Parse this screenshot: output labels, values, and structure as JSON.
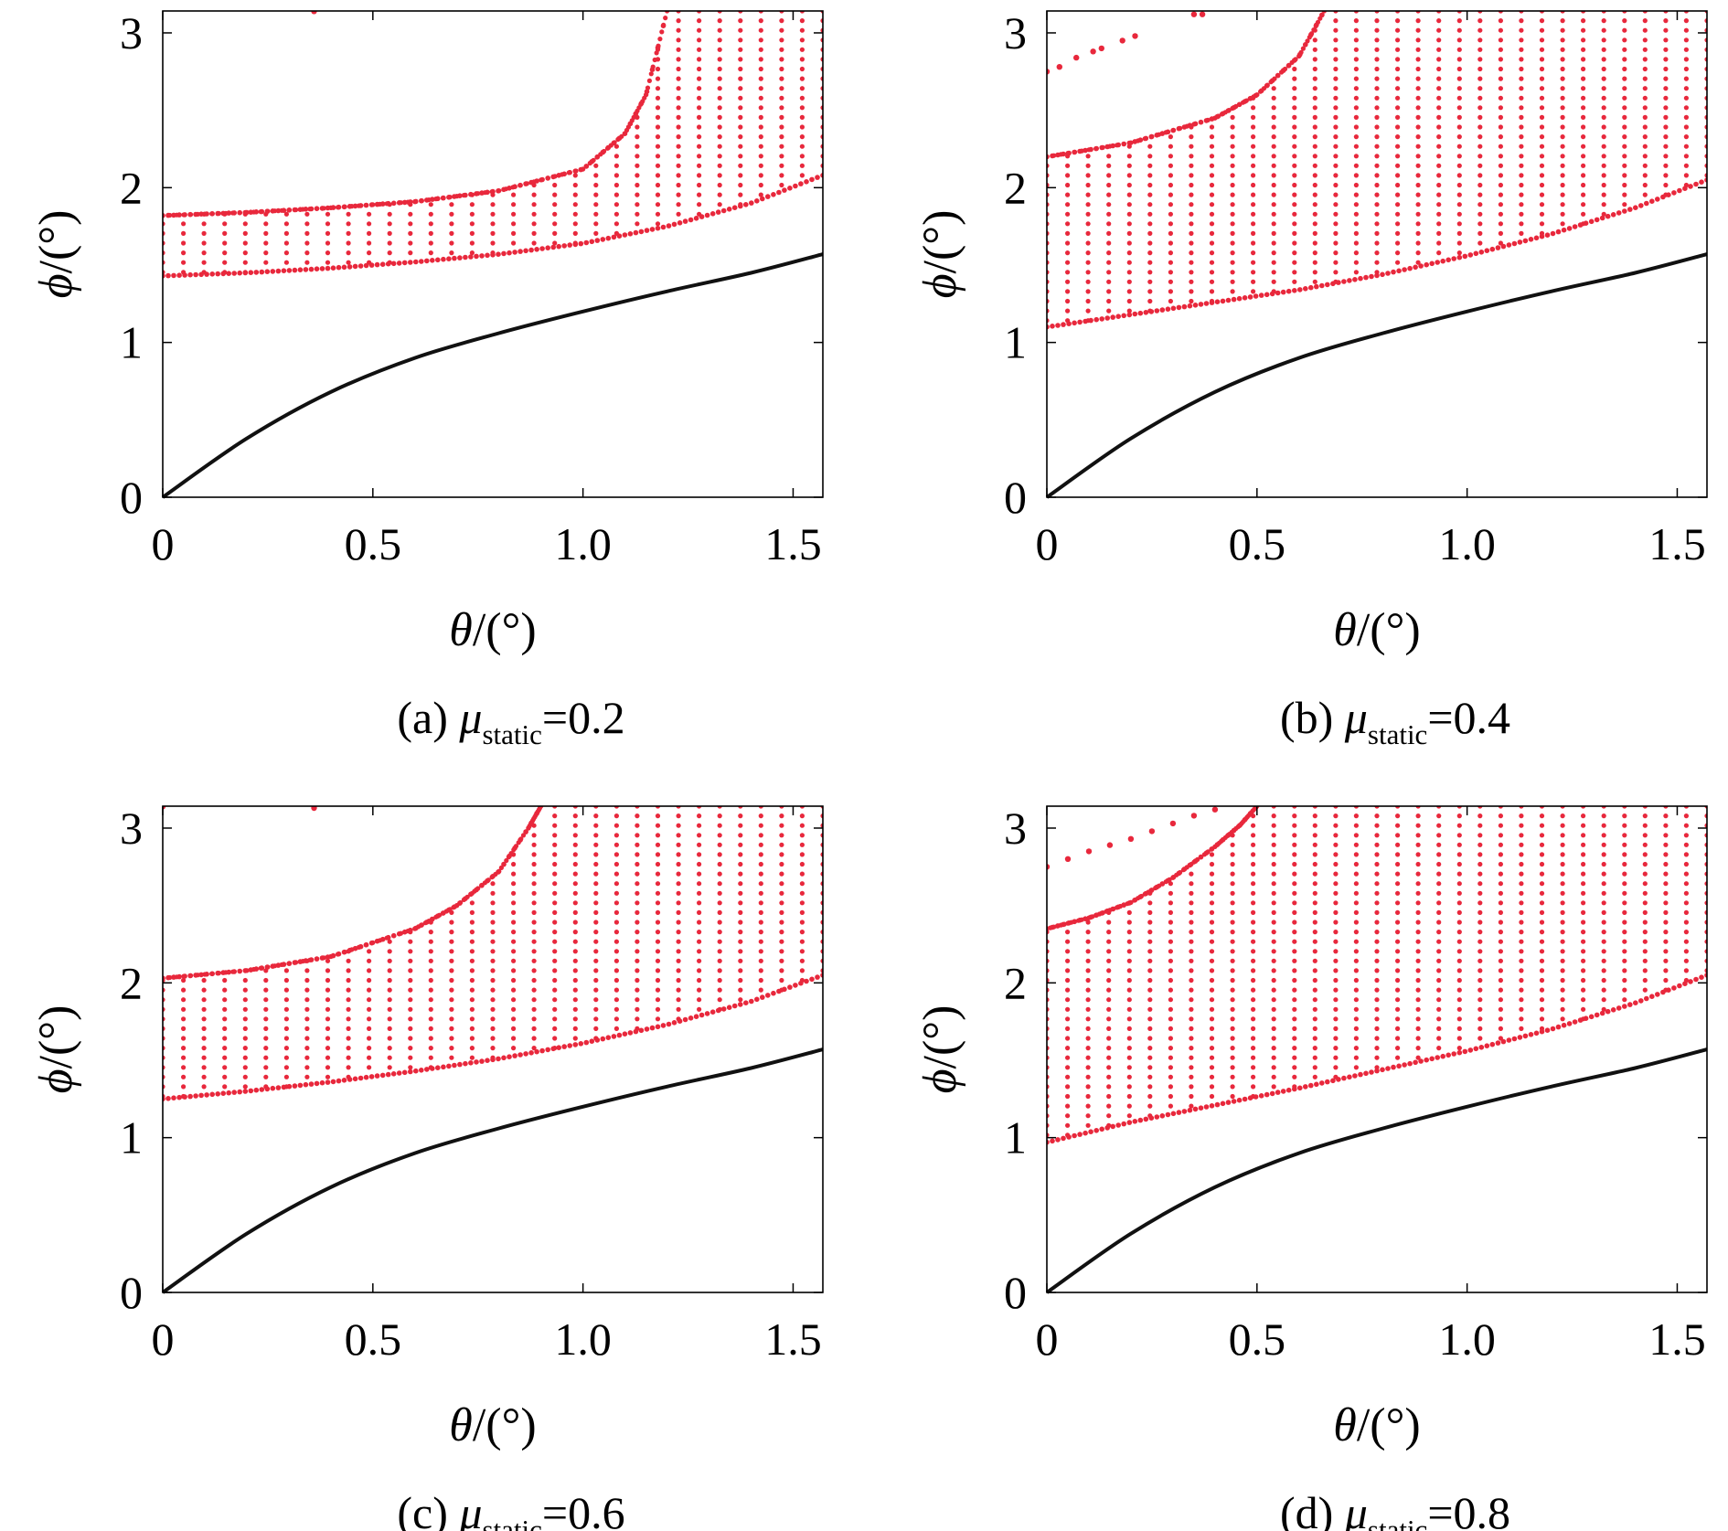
{
  "colors": {
    "region": "#e8283c",
    "curve": "#111111",
    "axis": "#000000"
  },
  "chart_data": [
    {
      "type": "scatter",
      "panel": "a",
      "caption_prefix": "(a) ",
      "mu_symbol": "μ",
      "mu_subscript": "static",
      "mu_value": "=0.2",
      "xlabel_symbol": "θ",
      "xlabel_unit": "/(°)",
      "ylabel_symbol": "ϕ",
      "ylabel_unit": "/(°)",
      "xlim": [
        0,
        1.5708
      ],
      "ylim": [
        0,
        3.1416
      ],
      "xticks": [
        0,
        0.5,
        1.0,
        1.5
      ],
      "xtick_labels": [
        "0",
        "0.5",
        "1.0",
        "1.5"
      ],
      "yticks": [
        0,
        1,
        2,
        3
      ],
      "ytick_labels": [
        "0",
        "1",
        "2",
        "3"
      ],
      "black_curve": {
        "name": "boundary curve",
        "x": [
          0,
          0.2,
          0.4,
          0.6,
          0.8,
          1.0,
          1.2,
          1.4,
          1.5708
        ],
        "y": [
          0,
          0.38,
          0.68,
          0.9,
          1.06,
          1.2,
          1.33,
          1.45,
          1.57
        ]
      },
      "region_lower": {
        "x": [
          0,
          0.2,
          0.4,
          0.6,
          0.8,
          1.0,
          1.2,
          1.4,
          1.5708
        ],
        "y": [
          1.43,
          1.45,
          1.48,
          1.52,
          1.57,
          1.64,
          1.75,
          1.9,
          2.08
        ]
      },
      "region_upper": {
        "x": [
          0,
          0.2,
          0.4,
          0.6,
          0.8,
          1.0,
          1.1,
          1.15,
          1.2
        ],
        "y": [
          1.82,
          1.84,
          1.87,
          1.91,
          1.98,
          2.12,
          2.35,
          2.6,
          3.1416
        ]
      },
      "isolated_points": [
        {
          "x": 0.36,
          "y": 3.14
        }
      ]
    },
    {
      "type": "scatter",
      "panel": "b",
      "caption_prefix": "(b) ",
      "mu_symbol": "μ",
      "mu_subscript": "static",
      "mu_value": "=0.4",
      "xlabel_symbol": "θ",
      "xlabel_unit": "/(°)",
      "ylabel_symbol": "ϕ",
      "ylabel_unit": "/(°)",
      "xlim": [
        0,
        1.5708
      ],
      "ylim": [
        0,
        3.1416
      ],
      "xticks": [
        0,
        0.5,
        1.0,
        1.5
      ],
      "xtick_labels": [
        "0",
        "0.5",
        "1.0",
        "1.5"
      ],
      "yticks": [
        0,
        1,
        2,
        3
      ],
      "ytick_labels": [
        "0",
        "1",
        "2",
        "3"
      ],
      "black_curve": {
        "name": "boundary curve",
        "x": [
          0,
          0.2,
          0.4,
          0.6,
          0.8,
          1.0,
          1.2,
          1.4,
          1.5708
        ],
        "y": [
          0,
          0.38,
          0.68,
          0.9,
          1.06,
          1.2,
          1.33,
          1.45,
          1.57
        ]
      },
      "region_lower": {
        "x": [
          0,
          0.2,
          0.4,
          0.6,
          0.8,
          1.0,
          1.2,
          1.4,
          1.5708
        ],
        "y": [
          1.1,
          1.18,
          1.26,
          1.34,
          1.44,
          1.56,
          1.7,
          1.87,
          2.05
        ]
      },
      "region_upper": {
        "x": [
          0,
          0.2,
          0.4,
          0.5,
          0.6,
          0.66
        ],
        "y": [
          2.2,
          2.29,
          2.45,
          2.6,
          2.85,
          3.1416
        ]
      },
      "isolated_points": [
        {
          "x": 0.0,
          "y": 2.75
        },
        {
          "x": 0.03,
          "y": 2.78
        },
        {
          "x": 0.07,
          "y": 2.84
        },
        {
          "x": 0.11,
          "y": 2.88
        },
        {
          "x": 0.13,
          "y": 2.9
        },
        {
          "x": 0.18,
          "y": 2.95
        },
        {
          "x": 0.21,
          "y": 2.98
        },
        {
          "x": 0.35,
          "y": 3.12
        },
        {
          "x": 0.37,
          "y": 3.12
        }
      ]
    },
    {
      "type": "scatter",
      "panel": "c",
      "caption_prefix": "(c) ",
      "mu_symbol": "μ",
      "mu_subscript": "static",
      "mu_value": "=0.6",
      "xlabel_symbol": "θ",
      "xlabel_unit": "/(°)",
      "ylabel_symbol": "ϕ",
      "ylabel_unit": "/(°)",
      "xlim": [
        0,
        1.5708
      ],
      "ylim": [
        0,
        3.1416
      ],
      "xticks": [
        0,
        0.5,
        1.0,
        1.5
      ],
      "xtick_labels": [
        "0",
        "0.5",
        "1.0",
        "1.5"
      ],
      "yticks": [
        0,
        1,
        2,
        3
      ],
      "ytick_labels": [
        "0",
        "1",
        "2",
        "3"
      ],
      "black_curve": {
        "name": "boundary curve",
        "x": [
          0,
          0.2,
          0.4,
          0.6,
          0.8,
          1.0,
          1.2,
          1.4,
          1.5708
        ],
        "y": [
          0,
          0.38,
          0.68,
          0.9,
          1.06,
          1.2,
          1.33,
          1.45,
          1.57
        ]
      },
      "region_lower": {
        "x": [
          0,
          0.2,
          0.4,
          0.6,
          0.8,
          1.0,
          1.2,
          1.4,
          1.5708
        ],
        "y": [
          1.25,
          1.3,
          1.36,
          1.43,
          1.51,
          1.61,
          1.73,
          1.88,
          2.05
        ]
      },
      "region_upper": {
        "x": [
          0,
          0.2,
          0.4,
          0.6,
          0.7,
          0.8,
          0.87,
          0.9
        ],
        "y": [
          2.03,
          2.08,
          2.17,
          2.35,
          2.5,
          2.72,
          3.0,
          3.1416
        ]
      },
      "isolated_points": [
        {
          "x": 0.0,
          "y": 3.14
        },
        {
          "x": 0.36,
          "y": 3.13
        }
      ]
    },
    {
      "type": "scatter",
      "panel": "d",
      "caption_prefix": "(d) ",
      "mu_symbol": "μ",
      "mu_subscript": "static",
      "mu_value": "=0.8",
      "xlabel_symbol": "θ",
      "xlabel_unit": "/(°)",
      "ylabel_symbol": "ϕ",
      "ylabel_unit": "/(°)",
      "xlim": [
        0,
        1.5708
      ],
      "ylim": [
        0,
        3.1416
      ],
      "xticks": [
        0,
        0.5,
        1.0,
        1.5
      ],
      "xtick_labels": [
        "0",
        "0.5",
        "1.0",
        "1.5"
      ],
      "yticks": [
        0,
        1,
        2,
        3
      ],
      "ytick_labels": [
        "0",
        "1",
        "2",
        "3"
      ],
      "black_curve": {
        "name": "boundary curve",
        "x": [
          0,
          0.2,
          0.4,
          0.6,
          0.8,
          1.0,
          1.2,
          1.4,
          1.5708
        ],
        "y": [
          0,
          0.38,
          0.68,
          0.9,
          1.06,
          1.2,
          1.33,
          1.45,
          1.57
        ]
      },
      "region_lower": {
        "x": [
          0,
          0.2,
          0.4,
          0.6,
          0.8,
          1.0,
          1.2,
          1.4,
          1.5708
        ],
        "y": [
          0.97,
          1.1,
          1.21,
          1.32,
          1.44,
          1.56,
          1.7,
          1.87,
          2.05
        ]
      },
      "region_upper": {
        "x": [
          0,
          0.1,
          0.2,
          0.3,
          0.4,
          0.46,
          0.5
        ],
        "y": [
          2.35,
          2.42,
          2.52,
          2.68,
          2.88,
          3.02,
          3.1416
        ]
      },
      "isolated_points": [
        {
          "x": 0.0,
          "y": 2.75
        },
        {
          "x": 0.05,
          "y": 2.8
        },
        {
          "x": 0.1,
          "y": 2.85
        },
        {
          "x": 0.15,
          "y": 2.89
        },
        {
          "x": 0.2,
          "y": 2.93
        },
        {
          "x": 0.25,
          "y": 2.98
        },
        {
          "x": 0.3,
          "y": 3.03
        },
        {
          "x": 0.35,
          "y": 3.08
        },
        {
          "x": 0.4,
          "y": 3.12
        }
      ]
    }
  ]
}
